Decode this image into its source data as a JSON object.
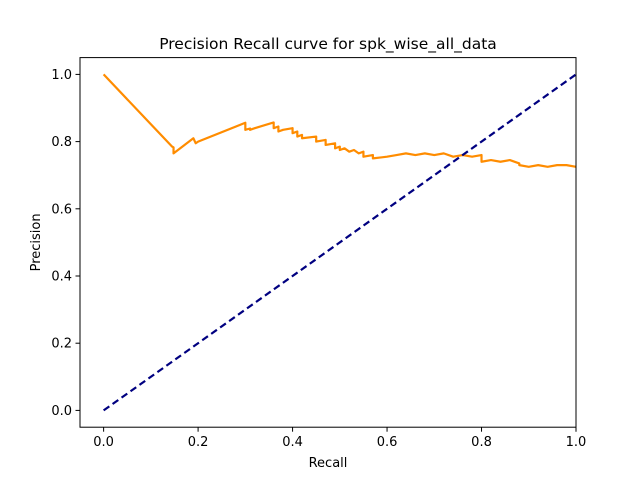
{
  "chart_data": {
    "type": "line",
    "title": "Precision Recall curve for spk_wise_all_data",
    "xlabel": "Recall",
    "ylabel": "Precision",
    "xlim": [
      -0.05,
      1.0
    ],
    "ylim": [
      -0.05,
      1.05
    ],
    "xticks": [
      "0.0",
      "0.2",
      "0.4",
      "0.6",
      "0.8",
      "1.0"
    ],
    "yticks": [
      "0.0",
      "0.2",
      "0.4",
      "0.6",
      "0.8",
      "1.0"
    ],
    "grid": false,
    "legend": false,
    "series": [
      {
        "color": "#ff8c00",
        "style": "solid",
        "x": [
          0.0,
          0.145,
          0.148,
          0.148,
          0.19,
          0.195,
          0.2,
          0.3,
          0.3,
          0.31,
          0.31,
          0.32,
          0.36,
          0.36,
          0.37,
          0.37,
          0.38,
          0.4,
          0.4,
          0.41,
          0.41,
          0.42,
          0.42,
          0.45,
          0.45,
          0.47,
          0.47,
          0.49,
          0.49,
          0.5,
          0.5,
          0.51,
          0.52,
          0.53,
          0.54,
          0.55,
          0.55,
          0.57,
          0.57,
          0.6,
          0.62,
          0.64,
          0.66,
          0.68,
          0.7,
          0.72,
          0.74,
          0.76,
          0.78,
          0.8,
          0.8,
          0.82,
          0.84,
          0.86,
          0.88,
          0.88,
          0.9,
          0.92,
          0.94,
          0.96,
          0.98,
          1.0
        ],
        "y": [
          1.0,
          0.785,
          0.783,
          0.765,
          0.81,
          0.795,
          0.8,
          0.856,
          0.835,
          0.839,
          0.835,
          0.84,
          0.857,
          0.84,
          0.845,
          0.83,
          0.835,
          0.84,
          0.825,
          0.83,
          0.815,
          0.82,
          0.81,
          0.815,
          0.8,
          0.805,
          0.79,
          0.795,
          0.78,
          0.785,
          0.775,
          0.78,
          0.77,
          0.775,
          0.765,
          0.77,
          0.755,
          0.76,
          0.75,
          0.755,
          0.76,
          0.765,
          0.76,
          0.765,
          0.76,
          0.765,
          0.755,
          0.76,
          0.755,
          0.76,
          0.74,
          0.745,
          0.74,
          0.745,
          0.735,
          0.73,
          0.725,
          0.73,
          0.725,
          0.73,
          0.73,
          0.725
        ]
      },
      {
        "color": "#000080",
        "style": "dashed",
        "x": [
          0.0,
          1.0
        ],
        "y": [
          0.0,
          1.0
        ]
      }
    ]
  }
}
